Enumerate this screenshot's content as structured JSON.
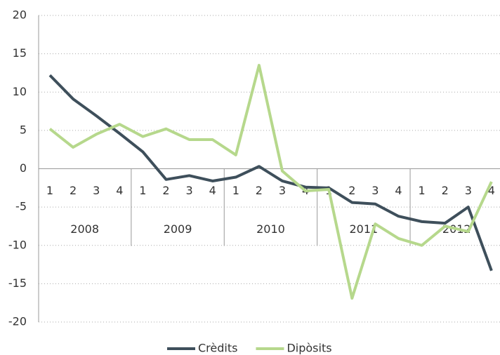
{
  "chart_data": {
    "type": "line",
    "categories": [
      "1",
      "2",
      "3",
      "4",
      "1",
      "2",
      "3",
      "4",
      "1",
      "2",
      "3",
      "4",
      "1",
      "2",
      "3",
      "4",
      "1",
      "2",
      "3",
      "4"
    ],
    "groups": [
      "2008",
      "2009",
      "2010",
      "2011",
      "2012"
    ],
    "series": [
      {
        "name": "Crèdits",
        "color": "#3e4f5b",
        "values": [
          12.2,
          9.1,
          6.9,
          4.6,
          2.2,
          -1.4,
          -0.9,
          -1.6,
          -1.1,
          0.3,
          -1.6,
          -2.4,
          -2.5,
          -4.4,
          -4.6,
          -6.2,
          -6.9,
          -7.1,
          -5.0,
          -13.3
        ]
      },
      {
        "name": "Dipòsits",
        "color": "#b6d88c",
        "values": [
          5.2,
          2.8,
          4.5,
          5.8,
          4.2,
          5.2,
          3.8,
          3.8,
          1.8,
          13.5,
          -0.3,
          -2.9,
          -2.7,
          -16.9,
          -7.2,
          -9.1,
          -10.0,
          -7.5,
          -8.2,
          -1.7
        ]
      }
    ],
    "ylim": [
      -20,
      20
    ],
    "yticks": [
      -20,
      -15,
      -10,
      -5,
      0,
      5,
      10,
      15,
      20
    ],
    "grid": true,
    "legend": "bottom"
  }
}
